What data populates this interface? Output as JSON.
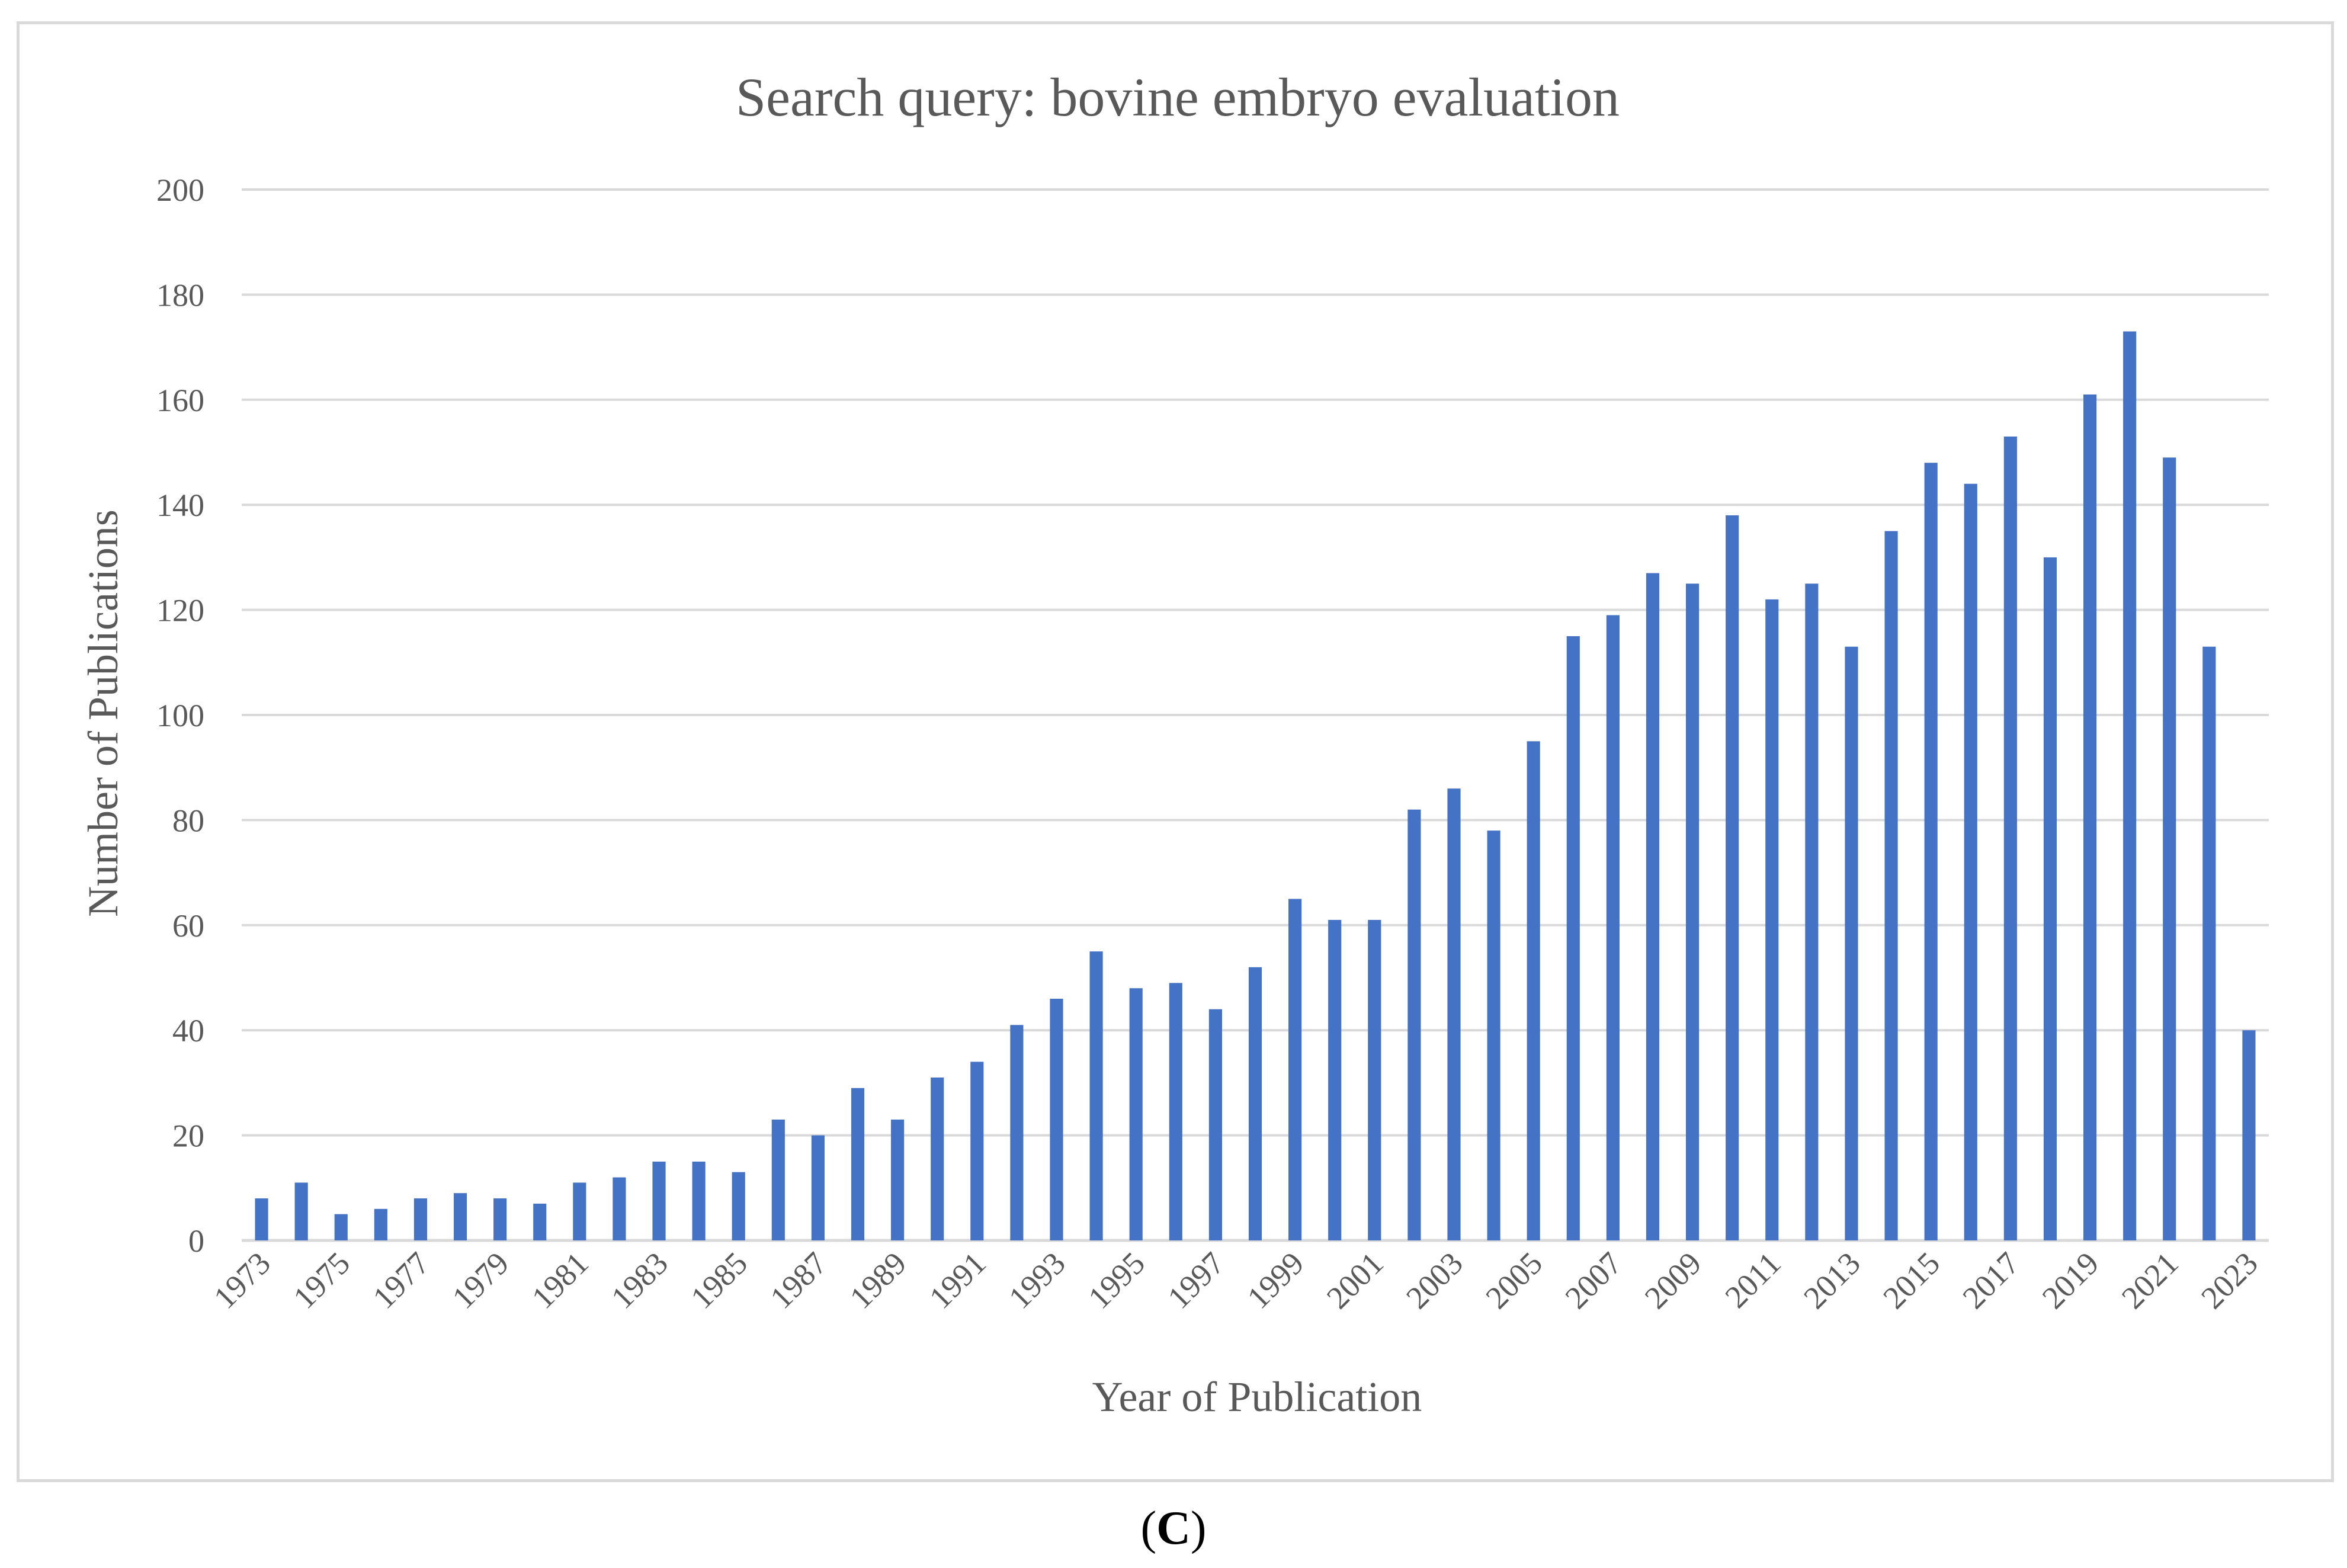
{
  "chart_data": {
    "type": "bar",
    "title": "Search query: bovine embryo evaluation",
    "xlabel": "Year of Publication",
    "ylabel": "Number of Publications",
    "ylim": [
      0,
      200
    ],
    "yticks": [
      "0",
      "20",
      "40",
      "60",
      "80",
      "100",
      "120",
      "140",
      "160",
      "180",
      "200"
    ],
    "grid": true,
    "legend": "none",
    "bar_color": "#4472c4",
    "categories": [
      "1973",
      "1974",
      "1975",
      "1976",
      "1977",
      "1978",
      "1979",
      "1980",
      "1981",
      "1982",
      "1983",
      "1984",
      "1985",
      "1986",
      "1987",
      "1988",
      "1989",
      "1990",
      "1991",
      "1992",
      "1993",
      "1994",
      "1995",
      "1996",
      "1997",
      "1998",
      "1999",
      "2000",
      "2001",
      "2002",
      "2003",
      "2004",
      "2005",
      "2006",
      "2007",
      "2008",
      "2009",
      "2010",
      "2011",
      "2012",
      "2013",
      "2014",
      "2015",
      "2016",
      "2017",
      "2018",
      "2019",
      "2020",
      "2021",
      "2022",
      "2023"
    ],
    "shown_xtick_labels": [
      "1973",
      "1975",
      "1977",
      "1979",
      "1981",
      "1983",
      "1985",
      "1987",
      "1989",
      "1991",
      "1993",
      "1995",
      "1997",
      "1999",
      "2001",
      "2003",
      "2005",
      "2007",
      "2009",
      "2011",
      "2013",
      "2015",
      "2017",
      "2019",
      "2021",
      "2023"
    ],
    "values": [
      8,
      11,
      5,
      6,
      8,
      9,
      8,
      7,
      11,
      12,
      15,
      15,
      13,
      23,
      20,
      29,
      23,
      31,
      34,
      41,
      46,
      55,
      48,
      49,
      44,
      52,
      65,
      61,
      61,
      82,
      86,
      78,
      95,
      115,
      119,
      127,
      125,
      138,
      122,
      125,
      113,
      135,
      148,
      144,
      153,
      130,
      161,
      173,
      149,
      113,
      40
    ]
  },
  "caption": {
    "open": "(",
    "letter": "C",
    "close": ")"
  }
}
